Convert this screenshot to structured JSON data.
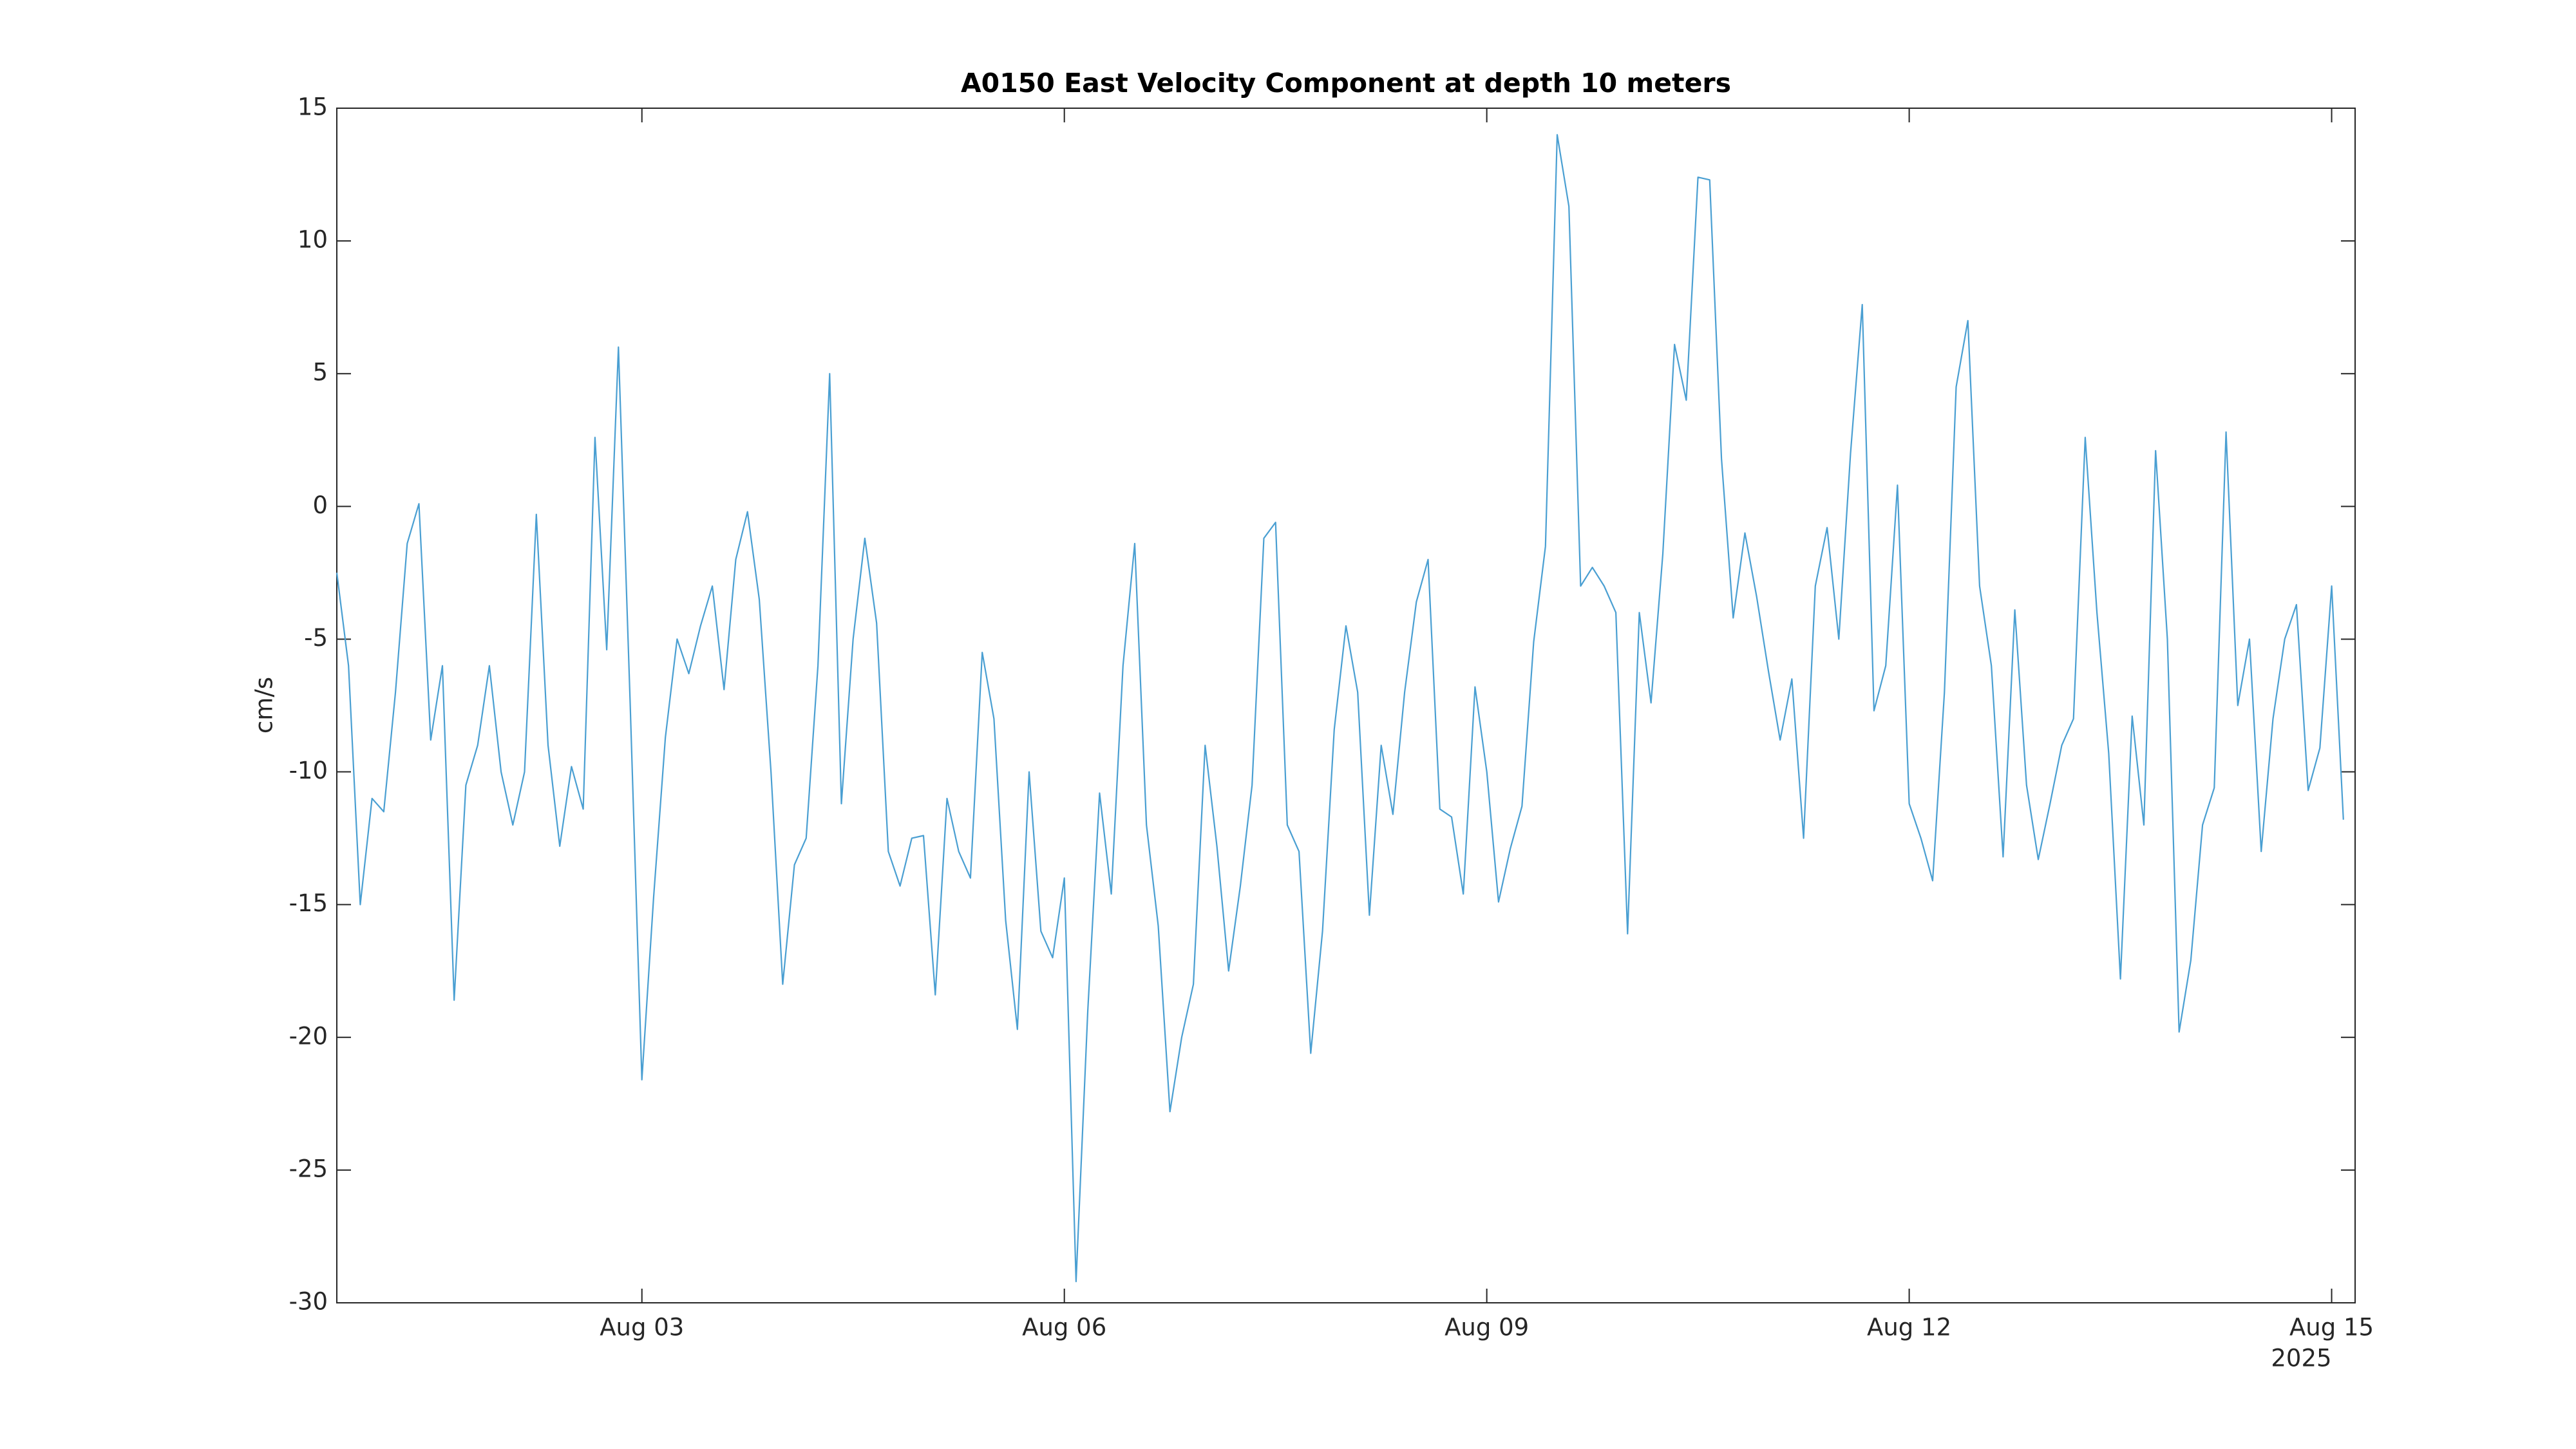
{
  "chart_data": {
    "type": "line",
    "title": "A0150 East Velocity Component at depth 10 meters",
    "y_label": "cm/s",
    "x_year_label": "2025",
    "color": "#4a9fd2",
    "grid": false,
    "xlim": [
      "2025-07-31T20:00",
      "2025-08-15T04:00"
    ],
    "xticks": [
      {
        "value": "2025-08-03T00:00",
        "label": "Aug 03"
      },
      {
        "value": "2025-08-06T00:00",
        "label": "Aug 06"
      },
      {
        "value": "2025-08-09T00:00",
        "label": "Aug 09"
      },
      {
        "value": "2025-08-12T00:00",
        "label": "Aug 12"
      },
      {
        "value": "2025-08-15T00:00",
        "label": "Aug 15"
      }
    ],
    "ylim": [
      -30,
      15
    ],
    "yticks": [
      -30,
      -25,
      -20,
      -15,
      -10,
      -5,
      0,
      5,
      10,
      15
    ],
    "x": [
      "2025-07-31T20:00",
      "2025-07-31T22:00",
      "2025-08-01T00:00",
      "2025-08-01T02:00",
      "2025-08-01T04:00",
      "2025-08-01T06:00",
      "2025-08-01T08:00",
      "2025-08-01T10:00",
      "2025-08-01T12:00",
      "2025-08-01T14:00",
      "2025-08-01T16:00",
      "2025-08-01T18:00",
      "2025-08-01T20:00",
      "2025-08-01T22:00",
      "2025-08-02T00:00",
      "2025-08-02T02:00",
      "2025-08-02T04:00",
      "2025-08-02T06:00",
      "2025-08-02T08:00",
      "2025-08-02T10:00",
      "2025-08-02T12:00",
      "2025-08-02T14:00",
      "2025-08-02T16:00",
      "2025-08-02T18:00",
      "2025-08-02T20:00",
      "2025-08-02T22:00",
      "2025-08-03T00:00",
      "2025-08-03T02:00",
      "2025-08-03T04:00",
      "2025-08-03T06:00",
      "2025-08-03T08:00",
      "2025-08-03T10:00",
      "2025-08-03T12:00",
      "2025-08-03T14:00",
      "2025-08-03T16:00",
      "2025-08-03T18:00",
      "2025-08-03T20:00",
      "2025-08-03T22:00",
      "2025-08-04T00:00",
      "2025-08-04T02:00",
      "2025-08-04T04:00",
      "2025-08-04T06:00",
      "2025-08-04T08:00",
      "2025-08-04T10:00",
      "2025-08-04T12:00",
      "2025-08-04T14:00",
      "2025-08-04T16:00",
      "2025-08-04T18:00",
      "2025-08-04T20:00",
      "2025-08-04T22:00",
      "2025-08-05T00:00",
      "2025-08-05T02:00",
      "2025-08-05T04:00",
      "2025-08-05T06:00",
      "2025-08-05T08:00",
      "2025-08-05T10:00",
      "2025-08-05T12:00",
      "2025-08-05T14:00",
      "2025-08-05T16:00",
      "2025-08-05T18:00",
      "2025-08-05T20:00",
      "2025-08-05T22:00",
      "2025-08-06T00:00",
      "2025-08-06T02:00",
      "2025-08-06T04:00",
      "2025-08-06T06:00",
      "2025-08-06T08:00",
      "2025-08-06T10:00",
      "2025-08-06T12:00",
      "2025-08-06T14:00",
      "2025-08-06T16:00",
      "2025-08-06T18:00",
      "2025-08-06T20:00",
      "2025-08-06T22:00",
      "2025-08-07T00:00",
      "2025-08-07T02:00",
      "2025-08-07T04:00",
      "2025-08-07T06:00",
      "2025-08-07T08:00",
      "2025-08-07T10:00",
      "2025-08-07T12:00",
      "2025-08-07T14:00",
      "2025-08-07T16:00",
      "2025-08-07T18:00",
      "2025-08-07T20:00",
      "2025-08-07T22:00",
      "2025-08-08T00:00",
      "2025-08-08T02:00",
      "2025-08-08T04:00",
      "2025-08-08T06:00",
      "2025-08-08T08:00",
      "2025-08-08T10:00",
      "2025-08-08T12:00",
      "2025-08-08T14:00",
      "2025-08-08T16:00",
      "2025-08-08T18:00",
      "2025-08-08T20:00",
      "2025-08-08T22:00",
      "2025-08-09T00:00",
      "2025-08-09T02:00",
      "2025-08-09T04:00",
      "2025-08-09T06:00",
      "2025-08-09T08:00",
      "2025-08-09T10:00",
      "2025-08-09T12:00",
      "2025-08-09T14:00",
      "2025-08-09T16:00",
      "2025-08-09T18:00",
      "2025-08-09T20:00",
      "2025-08-09T22:00",
      "2025-08-10T00:00",
      "2025-08-10T02:00",
      "2025-08-10T04:00",
      "2025-08-10T06:00",
      "2025-08-10T08:00",
      "2025-08-10T10:00",
      "2025-08-10T12:00",
      "2025-08-10T14:00",
      "2025-08-10T16:00",
      "2025-08-10T18:00",
      "2025-08-10T20:00",
      "2025-08-10T22:00",
      "2025-08-11T00:00",
      "2025-08-11T02:00",
      "2025-08-11T04:00",
      "2025-08-11T06:00",
      "2025-08-11T08:00",
      "2025-08-11T10:00",
      "2025-08-11T12:00",
      "2025-08-11T14:00",
      "2025-08-11T16:00",
      "2025-08-11T18:00",
      "2025-08-11T20:00",
      "2025-08-11T22:00",
      "2025-08-12T00:00",
      "2025-08-12T02:00",
      "2025-08-12T04:00",
      "2025-08-12T06:00",
      "2025-08-12T08:00",
      "2025-08-12T10:00",
      "2025-08-12T12:00",
      "2025-08-12T14:00",
      "2025-08-12T16:00",
      "2025-08-12T18:00",
      "2025-08-12T20:00",
      "2025-08-12T22:00",
      "2025-08-13T00:00",
      "2025-08-13T02:00",
      "2025-08-13T04:00",
      "2025-08-13T06:00",
      "2025-08-13T08:00",
      "2025-08-13T10:00",
      "2025-08-13T12:00",
      "2025-08-13T14:00",
      "2025-08-13T16:00",
      "2025-08-13T18:00",
      "2025-08-13T20:00",
      "2025-08-13T22:00",
      "2025-08-14T00:00",
      "2025-08-14T02:00",
      "2025-08-14T04:00",
      "2025-08-14T06:00",
      "2025-08-14T08:00",
      "2025-08-14T10:00",
      "2025-08-14T12:00",
      "2025-08-14T14:00",
      "2025-08-14T16:00",
      "2025-08-14T18:00",
      "2025-08-14T20:00",
      "2025-08-14T22:00",
      "2025-08-15T00:00",
      "2025-08-15T02:00"
    ],
    "values": [
      -2.5,
      -6,
      -15,
      -11,
      -11.5,
      -7,
      -1.4,
      0.1,
      -8.8,
      -6,
      -18.6,
      -10.5,
      -9,
      -6,
      -10,
      -12,
      -10,
      -0.3,
      -9,
      -12.8,
      -9.8,
      -11.4,
      2.6,
      -5.4,
      6,
      -7.4,
      -21.6,
      -14.7,
      -8.7,
      -5,
      -6.3,
      -4.5,
      -3,
      -6.9,
      -2,
      -0.2,
      -3.5,
      -10,
      -18,
      -13.5,
      -12.5,
      -6,
      5,
      -11.2,
      -5,
      -1.2,
      -4.4,
      -13,
      -14.3,
      -12.5,
      -12.4,
      -18.4,
      -11,
      -13,
      -14,
      -5.5,
      -8,
      -15.6,
      -19.7,
      -10,
      -16,
      -17,
      -14,
      -29.2,
      -19,
      -10.8,
      -14.6,
      -6,
      -1.4,
      -12,
      -15.8,
      -22.8,
      -20,
      -18,
      -9,
      -12.8,
      -17.5,
      -14.3,
      -10.5,
      -1.2,
      -0.6,
      -12,
      -13,
      -20.6,
      -16,
      -8.4,
      -4.5,
      -7,
      -15.4,
      -9,
      -11.6,
      -7,
      -3.6,
      -2,
      -11.4,
      -11.7,
      -14.6,
      -6.8,
      -10,
      -14.9,
      -12.9,
      -11.3,
      -5.1,
      -1.5,
      14,
      11.3,
      -3,
      -2.3,
      -3,
      -4,
      -16.1,
      -4,
      -7.4,
      -1.8,
      6.1,
      4,
      12.4,
      12.3,
      1.8,
      -4.2,
      -1,
      -3.4,
      -6.2,
      -8.8,
      -6.5,
      -12.5,
      -3,
      -0.8,
      -5,
      2,
      7.6,
      -7.7,
      -6,
      0.8,
      -11.2,
      -12.5,
      -14.1,
      -7,
      4.5,
      7,
      -3,
      -6,
      -13.2,
      -3.9,
      -10.5,
      -13.3,
      -11.2,
      -9,
      -8,
      2.6,
      -4,
      -9.3,
      -17.8,
      -7.9,
      -12,
      2.1,
      -5,
      -19.8,
      -17.1,
      -12,
      -10.6,
      2.8,
      -7.5,
      -5,
      -13,
      -8,
      -5,
      -3.7,
      -10.7,
      -9.1,
      -3,
      -11.8
    ]
  }
}
